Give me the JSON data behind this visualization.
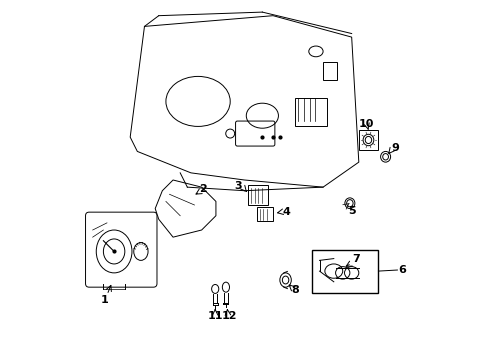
{
  "title": "",
  "background_color": "#ffffff",
  "line_color": "#000000",
  "label_color": "#000000",
  "font_size_labels": 7,
  "fig_width": 4.89,
  "fig_height": 3.6,
  "dpi": 100
}
